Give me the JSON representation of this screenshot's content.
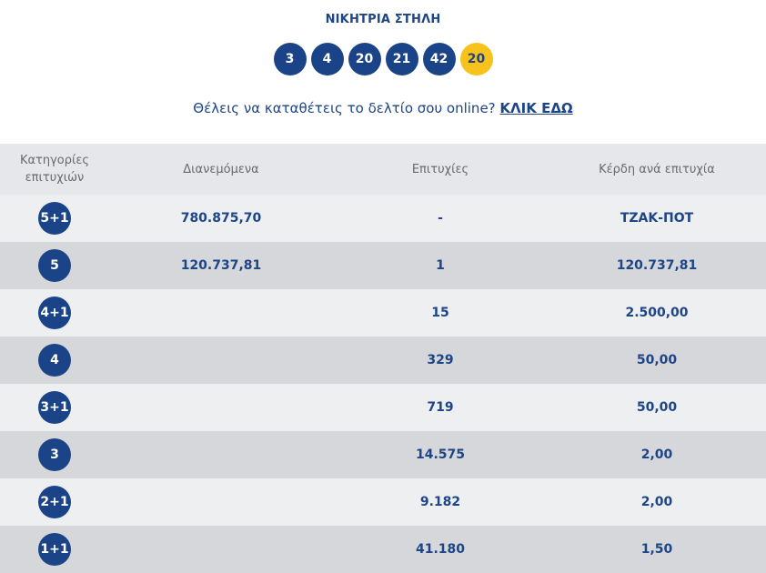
{
  "title": "ΝΙΚΗΤΡΙΑ ΣΤΗΛΗ",
  "numbers": [
    "3",
    "4",
    "20",
    "21",
    "42"
  ],
  "joker": "20",
  "promo": {
    "text": "Θέλεις να καταθέτεις το δελτίο σου online?",
    "link": "ΚΛΙΚ ΕΔΩ"
  },
  "headers": [
    "Κατηγορίες επιτυχιών",
    "Διανεμόμενα",
    "Επιτυχίες",
    "Κέρδη ανά επιτυχία"
  ],
  "rows": [
    {
      "category": "5+1",
      "distributed": "780.875,70",
      "winners": "-",
      "prize": "ΤΖΑΚ-ΠΟΤ"
    },
    {
      "category": "5",
      "distributed": "120.737,81",
      "winners": "1",
      "prize": "120.737,81"
    },
    {
      "category": "4+1",
      "distributed": "",
      "winners": "15",
      "prize": "2.500,00"
    },
    {
      "category": "4",
      "distributed": "",
      "winners": "329",
      "prize": "50,00"
    },
    {
      "category": "3+1",
      "distributed": "",
      "winners": "719",
      "prize": "50,00"
    },
    {
      "category": "3",
      "distributed": "",
      "winners": "14.575",
      "prize": "2,00"
    },
    {
      "category": "2+1",
      "distributed": "",
      "winners": "9.182",
      "prize": "2,00"
    },
    {
      "category": "1+1",
      "distributed": "",
      "winners": "41.180",
      "prize": "1,50"
    }
  ],
  "colors": {
    "primary": "#1a4487",
    "joker": "#f6c21b",
    "row_light": "#eeeff1",
    "row_dark": "#d6d7da"
  }
}
